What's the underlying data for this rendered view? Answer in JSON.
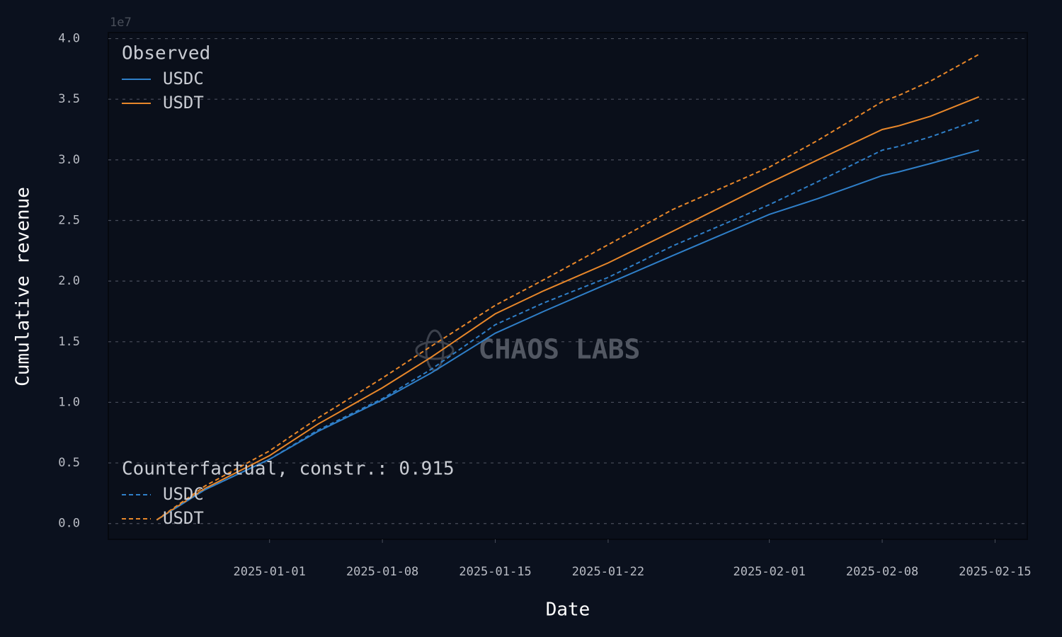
{
  "chart_data": {
    "type": "line",
    "x_label": "Date",
    "y_label": "Cumulative revenue",
    "y_offset_label": "1e7",
    "watermark": "CHAOS LABS",
    "x": [
      "2024-12-25",
      "2024-12-28",
      "2025-01-01",
      "2025-01-04",
      "2025-01-08",
      "2025-01-11",
      "2025-01-15",
      "2025-01-18",
      "2025-01-22",
      "2025-01-26",
      "2025-02-01",
      "2025-02-04",
      "2025-02-08",
      "2025-02-09",
      "2025-02-11",
      "2025-02-14"
    ],
    "xlim": [
      "2024-12-22",
      "2025-02-17"
    ],
    "xticks": [
      "2025-01-01",
      "2025-01-08",
      "2025-01-15",
      "2025-01-22",
      "2025-02-01",
      "2025-02-08",
      "2025-02-15"
    ],
    "ylim": [
      -0.13,
      4.05
    ],
    "yticks": [
      {
        "value": 0,
        "label": "0.0"
      },
      {
        "value": 0.5,
        "label": "0.5"
      },
      {
        "value": 1,
        "label": "1.0"
      },
      {
        "value": 1.5,
        "label": "1.5"
      },
      {
        "value": 2,
        "label": "2.0"
      },
      {
        "value": 2.5,
        "label": "2.5"
      },
      {
        "value": 3,
        "label": "3.0"
      },
      {
        "value": 3.5,
        "label": "3.5"
      },
      {
        "value": 4,
        "label": "4.0"
      }
    ],
    "grid": true,
    "legends": [
      {
        "title": "Observed",
        "corner": "upper left"
      },
      {
        "title": "Counterfactual, constr.: 0.915",
        "corner": "lower left"
      }
    ],
    "series": [
      {
        "name": "USDC",
        "color": "#2f7fc8",
        "dashed": false,
        "legend": 0,
        "values": [
          0.03,
          0.28,
          0.53,
          0.76,
          1.02,
          1.24,
          1.57,
          1.75,
          1.98,
          2.21,
          2.55,
          2.68,
          2.87,
          2.9,
          2.97,
          3.08
        ]
      },
      {
        "name": "USDT",
        "color": "#e8872a",
        "dashed": false,
        "legend": 0,
        "values": [
          0.03,
          0.29,
          0.56,
          0.82,
          1.12,
          1.37,
          1.73,
          1.92,
          2.15,
          2.41,
          2.81,
          3.0,
          3.25,
          3.28,
          3.36,
          3.52
        ]
      },
      {
        "name": "USDC",
        "color": "#2f7fc8",
        "dashed": true,
        "legend": 1,
        "values": [
          0.03,
          0.28,
          0.53,
          0.77,
          1.03,
          1.27,
          1.64,
          1.82,
          2.03,
          2.29,
          2.63,
          2.82,
          3.08,
          3.11,
          3.19,
          3.33
        ]
      },
      {
        "name": "USDT",
        "color": "#e8872a",
        "dashed": true,
        "legend": 1,
        "values": [
          0.03,
          0.31,
          0.6,
          0.87,
          1.2,
          1.46,
          1.8,
          2.01,
          2.3,
          2.59,
          2.94,
          3.16,
          3.48,
          3.53,
          3.65,
          3.87
        ]
      }
    ]
  }
}
